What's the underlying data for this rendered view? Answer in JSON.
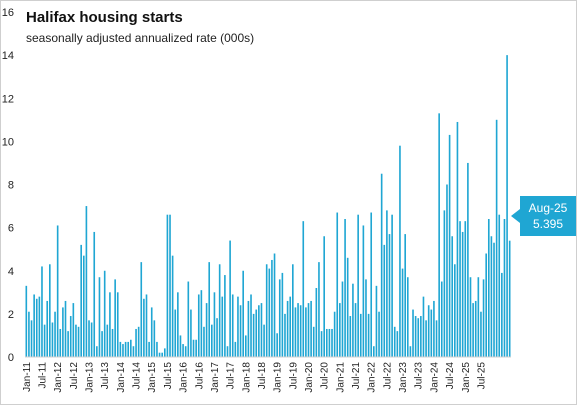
{
  "chart_data": {
    "type": "bar",
    "title": "Halifax housing starts",
    "subtitle": "seasonally adjusted annualized rate (000s)",
    "xlabel": "",
    "ylabel": "",
    "ylim": [
      0,
      16
    ],
    "yticks": [
      0,
      2,
      4,
      6,
      8,
      10,
      12,
      14,
      16
    ],
    "grid": false,
    "legend": "none",
    "bar_color": "#1fa6d3",
    "x_start": "Jan-11",
    "x_end": "Aug-25",
    "xtick_labels": [
      "Jan-11",
      "Jul-11",
      "Jan-12",
      "Jul-12",
      "Jan-13",
      "Jul-13",
      "Jan-14",
      "Jul-14",
      "Jan-15",
      "Jul-15",
      "Jan-16",
      "Jul-16",
      "Jan-17",
      "Jul-17",
      "Jan-18",
      "Jul-18",
      "Jan-19",
      "Jul-19",
      "Jan-20",
      "Jul-20",
      "Jan-21",
      "Jul-21",
      "Jan-22",
      "Jul-22",
      "Jan-23",
      "Jul-23",
      "Jan-24",
      "Jul-24",
      "Jan-25",
      "Jul-25"
    ],
    "values": [
      3.3,
      2.1,
      1.7,
      2.9,
      2.7,
      2.8,
      4.2,
      1.5,
      2.6,
      4.3,
      1.6,
      2.1,
      6.1,
      1.3,
      2.3,
      2.6,
      1.2,
      1.9,
      2.5,
      1.5,
      1.4,
      5.2,
      4.7,
      7.0,
      1.7,
      1.6,
      5.8,
      0.5,
      3.7,
      1.2,
      4.0,
      1.5,
      3.0,
      1.3,
      3.6,
      3.0,
      0.7,
      0.6,
      0.7,
      0.7,
      0.8,
      0.5,
      1.3,
      1.4,
      4.4,
      2.7,
      2.9,
      0.7,
      2.3,
      1.7,
      0.7,
      0.2,
      0.2,
      0.4,
      6.6,
      6.6,
      4.7,
      2.2,
      3.0,
      1.0,
      0.6,
      0.5,
      3.5,
      2.2,
      0.8,
      0.8,
      2.9,
      3.1,
      1.4,
      2.5,
      4.4,
      1.5,
      3.0,
      1.8,
      4.3,
      2.8,
      3.8,
      0.5,
      5.4,
      2.9,
      0.7,
      2.8,
      2.4,
      4.0,
      1.0,
      2.6,
      2.9,
      2.0,
      2.2,
      2.4,
      2.5,
      1.5,
      4.3,
      4.1,
      4.5,
      4.8,
      1.1,
      3.6,
      3.9,
      2.0,
      2.6,
      2.8,
      4.3,
      2.3,
      2.5,
      2.4,
      6.3,
      2.3,
      2.5,
      2.6,
      1.4,
      3.2,
      4.4,
      1.2,
      5.6,
      1.3,
      1.3,
      1.3,
      2.1,
      6.7,
      2.5,
      3.5,
      6.4,
      4.6,
      1.9,
      3.4,
      2.5,
      6.6,
      2.0,
      6.1,
      3.6,
      2.0,
      6.7,
      0.5,
      3.3,
      2.1,
      8.5,
      5.2,
      6.8,
      5.7,
      6.6,
      1.4,
      1.2,
      9.8,
      4.1,
      5.7,
      3.7,
      0.5,
      2.2,
      1.9,
      1.8,
      1.9,
      2.8,
      1.7,
      2.4,
      2.2,
      2.6,
      1.7,
      11.3,
      3.5,
      6.8,
      8.0,
      10.3,
      5.6,
      4.3,
      10.9,
      6.3,
      5.8,
      6.3,
      9.0,
      3.7,
      2.5,
      2.6,
      3.7,
      2.1,
      3.6,
      4.8,
      6.4,
      5.6,
      5.3,
      11.0,
      6.6,
      3.9,
      6.4,
      14.0,
      5.395
    ]
  },
  "callout": {
    "label": "Aug-25",
    "value": "5.395"
  }
}
